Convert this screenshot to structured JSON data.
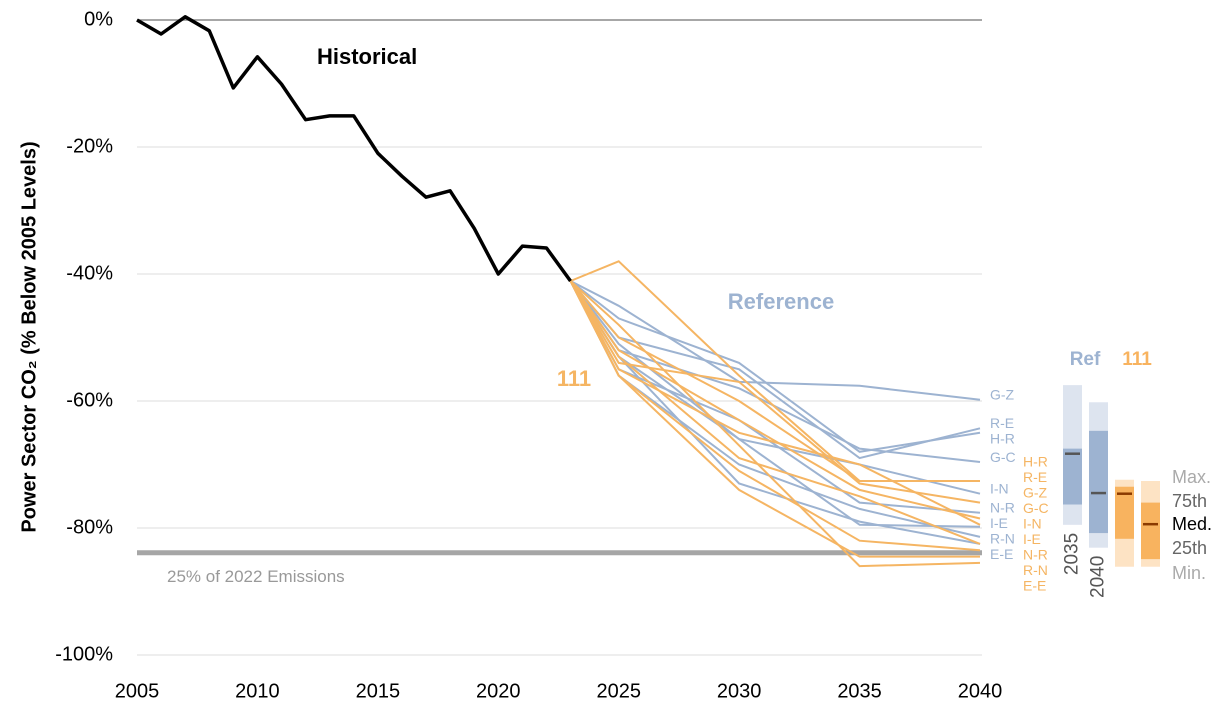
{
  "chart_data": {
    "type": "line",
    "ylabel": "Power Sector CO₂ (% Below 2005 Levels)",
    "xlim": [
      2005,
      2040
    ],
    "ylim": [
      -100,
      0
    ],
    "xticks": [
      2005,
      2010,
      2015,
      2020,
      2025,
      2030,
      2035,
      2040
    ],
    "yticks": [
      {
        "value": 0,
        "label": "0%"
      },
      {
        "value": -20,
        "label": "-20%"
      },
      {
        "value": -40,
        "label": "-40%"
      },
      {
        "value": -60,
        "label": "-60%"
      },
      {
        "value": -80,
        "label": "-80%"
      },
      {
        "value": -100,
        "label": "-100%"
      }
    ],
    "grid": true,
    "series": [
      {
        "name": "Historical",
        "color": "#000000",
        "x": [
          2005,
          2006,
          2007,
          2008,
          2009,
          2010,
          2011,
          2012,
          2013,
          2014,
          2015,
          2016,
          2017,
          2018,
          2019,
          2020,
          2021,
          2022,
          2023
        ],
        "values": [
          0,
          -2.2,
          0.5,
          -1.7,
          -10.7,
          -5.8,
          -10.1,
          -15.7,
          -15.1,
          -15.1,
          -21,
          -24.6,
          -27.9,
          -26.9,
          -32.8,
          -40,
          -35.6,
          -35.9,
          -41.1
        ]
      }
    ],
    "scenario_groups": [
      {
        "name": "Reference",
        "color": "#9db3d1",
        "x": [
          2023,
          2025,
          2030,
          2035,
          2040
        ],
        "series": [
          {
            "name": "G-Z",
            "values": [
              -41.1,
              -45,
              -57,
              -57.6,
              -59.8
            ]
          },
          {
            "name": "R-E",
            "values": [
              -41.1,
              -50,
              -55,
              -69,
              -64.3
            ]
          },
          {
            "name": "H-R",
            "values": [
              -41.1,
              -47,
              -54,
              -68,
              -65
            ]
          },
          {
            "name": "G-C",
            "values": [
              -41.1,
              -52,
              -58,
              -67.5,
              -69.6
            ]
          },
          {
            "name": "I-N",
            "values": [
              -41.1,
              -53,
              -66,
              -70,
              -74.6
            ]
          },
          {
            "name": "N-R",
            "values": [
              -41.1,
              -55,
              -63,
              -76,
              -77.6
            ]
          },
          {
            "name": "I-E",
            "values": [
              -41.1,
              -51,
              -66,
              -79.5,
              -79.8
            ]
          },
          {
            "name": "R-N",
            "values": [
              -41.1,
              -56,
              -70,
              -77,
              -81.4
            ]
          },
          {
            "name": "E-E",
            "values": [
              -41.1,
              -53,
              -73,
              -79,
              -82.5
            ]
          }
        ]
      },
      {
        "name": "111",
        "color": "#f5b563",
        "x": [
          2023,
          2025,
          2030,
          2035,
          2040
        ],
        "series": [
          {
            "name": "H-R",
            "values": [
              -41.1,
              -38,
              -56,
              -72.6,
              -72.6
            ]
          },
          {
            "name": "R-E",
            "values": [
              -41.1,
              -50,
              -60,
              -72.6,
              -72.6
            ]
          },
          {
            "name": "G-Z",
            "values": [
              -41.1,
              -54,
              -57,
              -73,
              -76
            ]
          },
          {
            "name": "G-C",
            "values": [
              -41.1,
              -52,
              -63,
              -74,
              -78.5
            ]
          },
          {
            "name": "I-N",
            "values": [
              -41.1,
              -55,
              -65,
              -70,
              -79.5
            ]
          },
          {
            "name": "I-E",
            "values": [
              -41.1,
              -53,
              -69,
              -75,
              -82.5
            ]
          },
          {
            "name": "N-R",
            "values": [
              -41.1,
              -56,
              -71,
              -82,
              -83.5
            ]
          },
          {
            "name": "R-N",
            "values": [
              -41.1,
              -56,
              -74,
              -84.5,
              -84.5
            ]
          },
          {
            "name": "E-E",
            "values": [
              -41.1,
              -48,
              -67,
              -86,
              -85.5
            ]
          }
        ]
      }
    ],
    "reference_line": {
      "value": -83.9,
      "label": "25% of 2022 Emissions",
      "color": "#a6a6a6"
    },
    "boxplots": [
      {
        "name": "Ref",
        "color": "#9db3d1",
        "light_color": "#dde4ef",
        "median_color": "#555555",
        "labels": [
          "2035",
          "2040"
        ],
        "boxes": [
          {
            "min": -79.5,
            "q1": -76.3,
            "median": -68.3,
            "q3": -67.5,
            "max": -57.5
          },
          {
            "min": -83.1,
            "q1": -80.8,
            "median": -74.5,
            "q3": -64.7,
            "max": -60.2
          }
        ]
      },
      {
        "name": "111",
        "color": "#f8b35f",
        "light_color": "#fde3c4",
        "median_color": "#8b3a00",
        "labels": [
          null,
          null
        ],
        "boxes": [
          {
            "min": -86.1,
            "q1": -81.7,
            "median": -74.6,
            "q3": -73.5,
            "max": -72.4
          },
          {
            "min": -86.1,
            "q1": -84.9,
            "median": -79.4,
            "q3": -76,
            "max": -72.6
          }
        ]
      }
    ],
    "box_legend": [
      "Max.",
      "75th",
      "Med.",
      "25th",
      "Min."
    ]
  }
}
